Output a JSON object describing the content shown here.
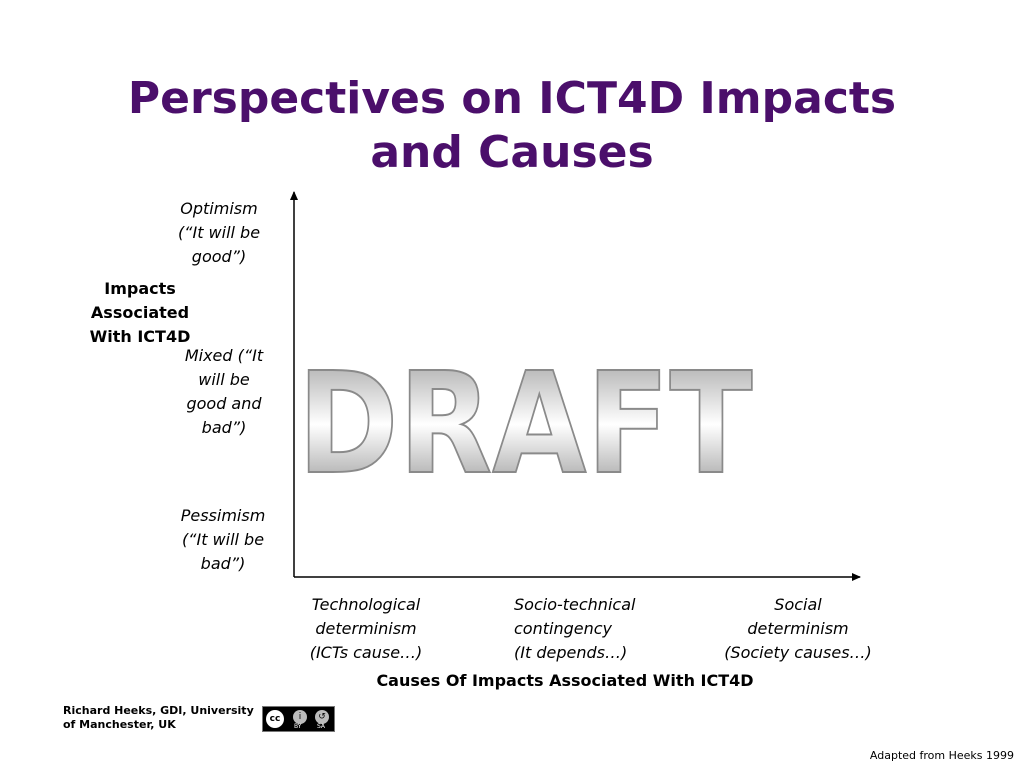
{
  "title": {
    "line1": "Perspectives on ICT4D Impacts",
    "line2": "and Causes"
  },
  "y_axis": {
    "label": [
      "Impacts",
      "Associated",
      "With ICT4D"
    ],
    "levels": [
      {
        "name": "optimism",
        "lines": [
          "Optimism",
          "(“It will be",
          "good”)"
        ]
      },
      {
        "name": "mixed",
        "lines": [
          "Mixed (“It",
          "will be",
          "good and",
          "bad”)"
        ]
      },
      {
        "name": "pessimism",
        "lines": [
          "Pessimism",
          "(“It will be",
          "bad”)"
        ]
      }
    ]
  },
  "x_axis": {
    "label": "Causes Of Impacts Associated With ICT4D",
    "levels": [
      {
        "name": "technological",
        "lines": [
          "Technological",
          "determinism",
          "(ICTs cause…)"
        ]
      },
      {
        "name": "socio-technical",
        "lines": [
          "Socio-technical",
          "contingency",
          "(It depends…)"
        ]
      },
      {
        "name": "social",
        "lines": [
          "Social",
          "determinism",
          "(Society causes…)"
        ]
      }
    ]
  },
  "watermark": "DRAFT",
  "author": [
    "Richard Heeks, GDI, University",
    "of Manchester, UK"
  ],
  "license": {
    "icon": "cc-by-sa-icon",
    "badge": "cc",
    "by": "BY",
    "sa": "SA"
  },
  "source": "Adapted from Heeks 1999",
  "colors": {
    "title": "#4b0f6b",
    "axis": "#000000"
  }
}
